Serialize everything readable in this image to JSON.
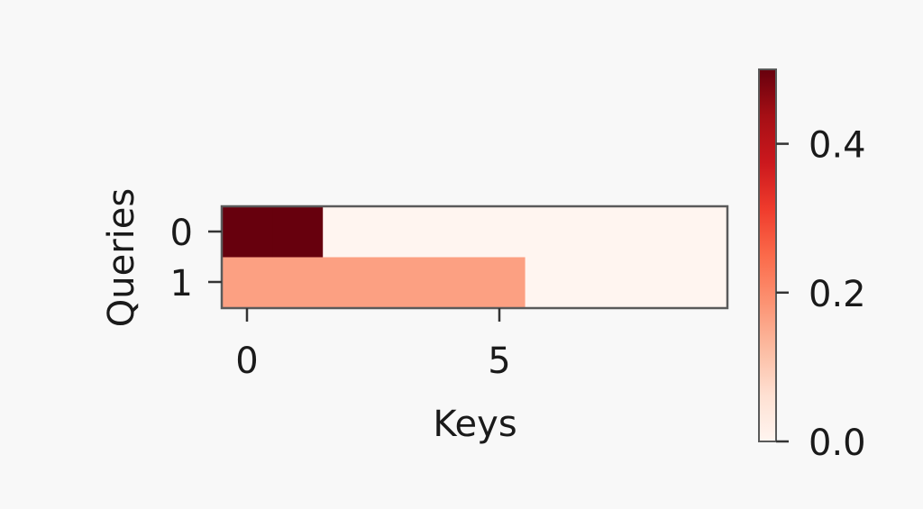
{
  "chart_data": {
    "type": "heatmap",
    "title": "",
    "xlabel": "Keys",
    "ylabel": "Queries",
    "x_ticks": [
      "0",
      "5"
    ],
    "y_ticks": [
      "0",
      "1"
    ],
    "x_range": [
      0,
      9
    ],
    "rows": [
      [
        0.5,
        0.5,
        0,
        0,
        0,
        0,
        0,
        0,
        0,
        0
      ],
      [
        0.1667,
        0.1667,
        0.1667,
        0.1667,
        0.1667,
        0.1667,
        0,
        0,
        0,
        0
      ]
    ],
    "colormap": "Reds",
    "colorbar": {
      "range": [
        0,
        0.5
      ],
      "ticks": [
        "0.0",
        "0.2",
        "0.4"
      ],
      "tick_values": [
        0,
        0.2,
        0.4
      ]
    },
    "grid": false
  }
}
